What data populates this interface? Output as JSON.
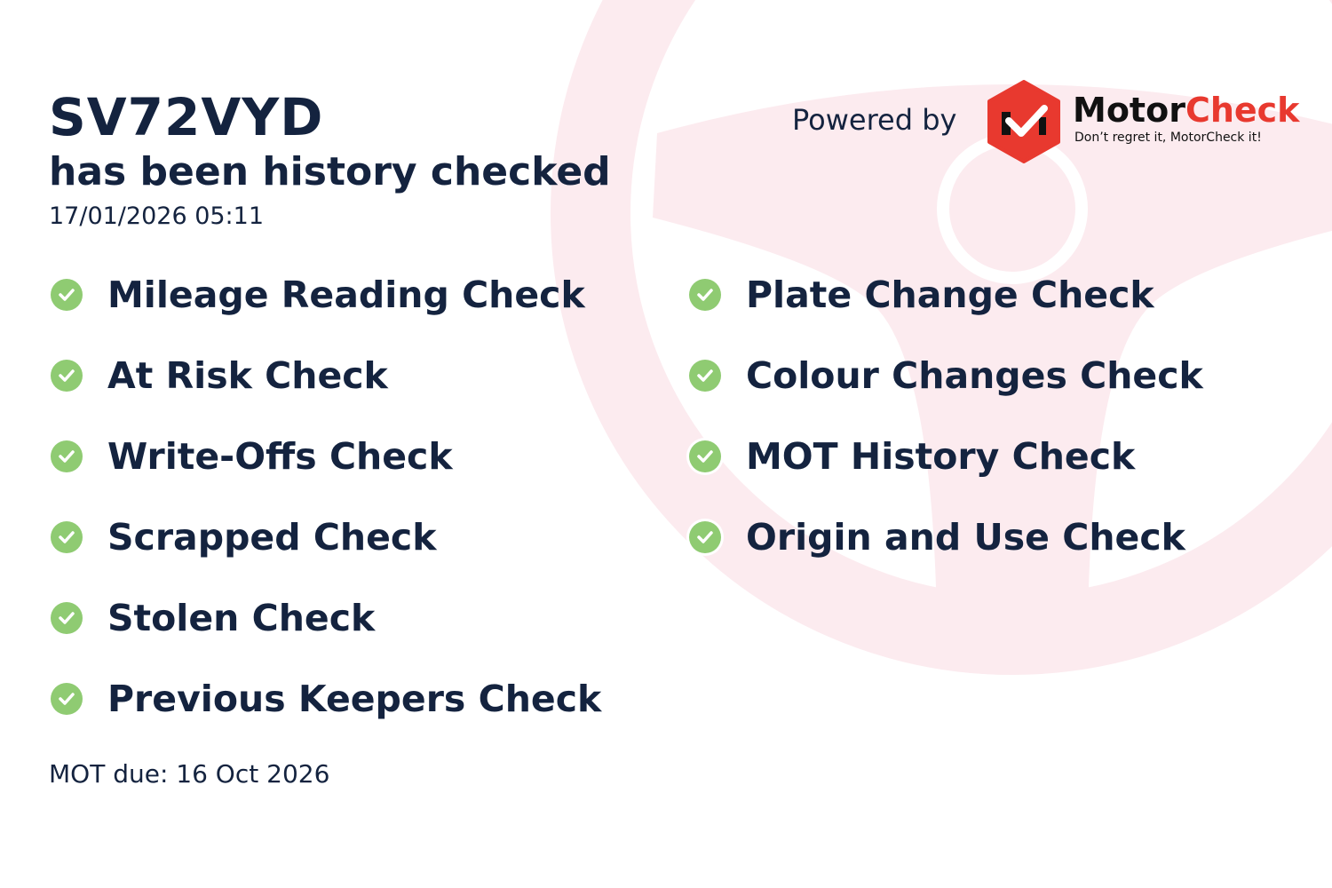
{
  "header": {
    "plate": "SV72VYD",
    "subtitle": "has been history checked",
    "datetime": "17/01/2026 05:11"
  },
  "branding": {
    "powered_by": "Powered by",
    "brand_part1": "Motor",
    "brand_part2": "Check",
    "tagline": "Don’t regret it, MotorCheck it!",
    "accent": "#e8392f"
  },
  "checks_left": [
    "Mileage Reading Check",
    "At Risk Check",
    "Write-Offs Check",
    "Scrapped Check",
    "Stolen Check",
    "Previous Keepers Check"
  ],
  "checks_right": [
    "Plate Change Check",
    "Colour Changes Check",
    "MOT History Check",
    "Origin and Use Check"
  ],
  "check_icon": "check-circle-icon",
  "check_color": "#8fcb72",
  "footer": {
    "mot_due": "MOT due: 16 Oct 2026"
  }
}
